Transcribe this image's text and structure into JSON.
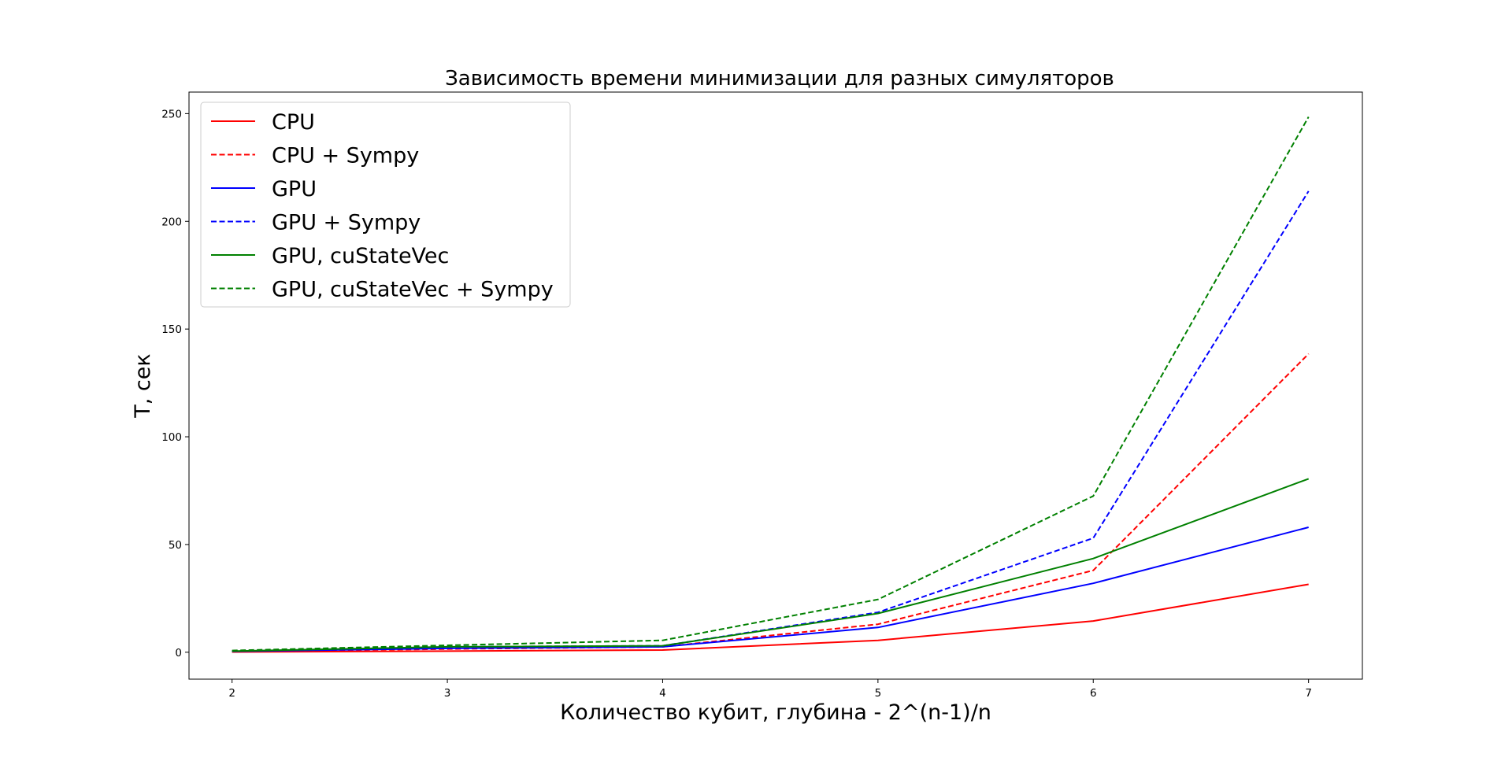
{
  "chart_data": {
    "type": "line",
    "title": "Зависимость времени минимизации для разных симуляторов",
    "xlabel": "Количество кубит, глубина - 2^(n-1)/n",
    "ylabel": "T, сек",
    "x": [
      2,
      3,
      4,
      5,
      6,
      7
    ],
    "xlim": [
      1.8,
      7.25
    ],
    "ylim": [
      -12.5,
      260
    ],
    "xticks": [
      "2",
      "3",
      "4",
      "5",
      "6",
      "7"
    ],
    "yticks": [
      "0",
      "50",
      "100",
      "150",
      "200",
      "250"
    ],
    "grid": false,
    "legend_position": "top-left",
    "series": [
      {
        "name": "CPU",
        "color": "#ff0000",
        "style": "solid",
        "values": [
          0.1,
          0.5,
          1.0,
          5.5,
          14.5,
          31.5
        ]
      },
      {
        "name": "CPU + Sympy",
        "color": "#ff0000",
        "style": "dashed",
        "values": [
          0.3,
          1.5,
          2.5,
          13.0,
          38.0,
          138.5
        ]
      },
      {
        "name": "GPU",
        "color": "#0000ff",
        "style": "solid",
        "values": [
          0.4,
          1.8,
          2.5,
          11.5,
          32.0,
          58.0
        ]
      },
      {
        "name": "GPU + Sympy",
        "color": "#0000ff",
        "style": "dashed",
        "values": [
          0.5,
          2.5,
          3.0,
          18.5,
          53.0,
          214.0
        ]
      },
      {
        "name": "GPU, cuStateVec",
        "color": "#008000",
        "style": "solid",
        "values": [
          0.5,
          2.5,
          3.0,
          18.0,
          43.5,
          80.5
        ]
      },
      {
        "name": "GPU, cuStateVec + Sympy",
        "color": "#008000",
        "style": "dashed",
        "values": [
          0.8,
          3.2,
          5.5,
          24.5,
          72.5,
          248.5
        ]
      }
    ]
  }
}
